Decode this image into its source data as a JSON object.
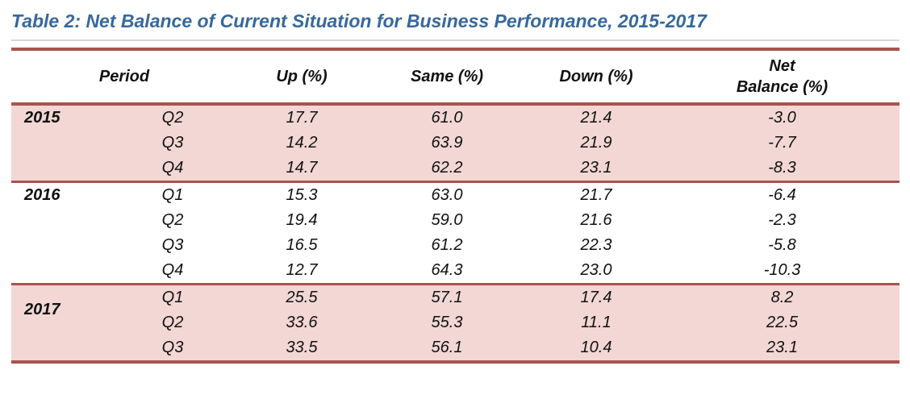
{
  "title": "Table 2: Net Balance of Current Situation for Business Performance, 2015-2017",
  "colors": {
    "title_blue": "#36689D",
    "rule_red": "#A9534E",
    "band_pink": "#F2D7D5"
  },
  "table": {
    "headers": {
      "period": "Period",
      "up": "Up (%)",
      "same": "Same (%)",
      "down": "Down (%)",
      "net_line1": "Net",
      "net_line2": "Balance (%)"
    },
    "groups": [
      {
        "year": "2015",
        "shaded": true,
        "rows": [
          {
            "quarter": "Q2",
            "up": "17.7",
            "same": "61.0",
            "down": "21.4",
            "net": "-3.0"
          },
          {
            "quarter": "Q3",
            "up": "14.2",
            "same": "63.9",
            "down": "21.9",
            "net": "-7.7"
          },
          {
            "quarter": "Q4",
            "up": "14.7",
            "same": "62.2",
            "down": "23.1",
            "net": "-8.3"
          }
        ]
      },
      {
        "year": "2016",
        "shaded": false,
        "rows": [
          {
            "quarter": "Q1",
            "up": "15.3",
            "same": "63.0",
            "down": "21.7",
            "net": "-6.4"
          },
          {
            "quarter": "Q2",
            "up": "19.4",
            "same": "59.0",
            "down": "21.6",
            "net": "-2.3"
          },
          {
            "quarter": "Q3",
            "up": "16.5",
            "same": "61.2",
            "down": "22.3",
            "net": "-5.8"
          },
          {
            "quarter": "Q4",
            "up": "12.7",
            "same": "64.3",
            "down": "23.0",
            "net": "-10.3"
          }
        ]
      },
      {
        "year": "2017",
        "shaded": true,
        "rows": [
          {
            "quarter": "Q1",
            "up": "25.5",
            "same": "57.1",
            "down": "17.4",
            "net": "8.2"
          },
          {
            "quarter": "Q2",
            "up": "33.6",
            "same": "55.3",
            "down": "11.1",
            "net": "22.5"
          },
          {
            "quarter": "Q3",
            "up": "33.5",
            "same": "56.1",
            "down": "10.4",
            "net": "23.1"
          }
        ]
      }
    ]
  },
  "chart_data": {
    "type": "table",
    "title": "Table 2: Net Balance of Current Situation for Business Performance, 2015-2017",
    "columns": [
      "Year",
      "Quarter",
      "Up (%)",
      "Same (%)",
      "Down (%)",
      "Net Balance (%)"
    ],
    "rows": [
      [
        "2015",
        "Q2",
        17.7,
        61.0,
        21.4,
        -3.0
      ],
      [
        "2015",
        "Q3",
        14.2,
        63.9,
        21.9,
        -7.7
      ],
      [
        "2015",
        "Q4",
        14.7,
        62.2,
        23.1,
        -8.3
      ],
      [
        "2016",
        "Q1",
        15.3,
        63.0,
        21.7,
        -6.4
      ],
      [
        "2016",
        "Q2",
        19.4,
        59.0,
        21.6,
        -2.3
      ],
      [
        "2016",
        "Q3",
        16.5,
        61.2,
        22.3,
        -5.8
      ],
      [
        "2016",
        "Q4",
        12.7,
        64.3,
        23.0,
        -10.3
      ],
      [
        "2017",
        "Q1",
        25.5,
        57.1,
        17.4,
        8.2
      ],
      [
        "2017",
        "Q2",
        33.6,
        55.3,
        11.1,
        22.5
      ],
      [
        "2017",
        "Q3",
        33.5,
        56.1,
        10.4,
        23.1
      ]
    ]
  }
}
